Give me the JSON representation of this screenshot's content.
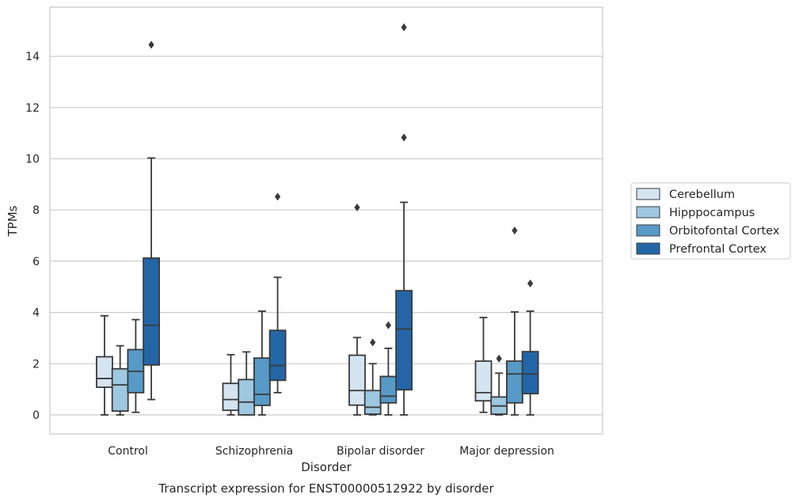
{
  "chart_data": {
    "type": "box",
    "title": "",
    "caption": "Transcript expression for ENST00000512922 by disorder",
    "xlabel": "Disorder",
    "ylabel": "TPMs",
    "ylim": [
      -0.75,
      15.85
    ],
    "yticks": [
      0,
      2,
      4,
      6,
      8,
      10,
      12,
      14
    ],
    "grid": true,
    "legend_position": "right",
    "categories": [
      "Control",
      "Schizophrenia",
      "Bipolar disorder",
      "Major depression"
    ],
    "series": [
      {
        "name": "Cerebellum",
        "color": "#d5e4f1",
        "boxes": [
          {
            "whislo": 0.0,
            "q1": 1.08,
            "med": 1.42,
            "q3": 2.27,
            "whishi": 3.87,
            "fliers": []
          },
          {
            "whislo": 0.0,
            "q1": 0.18,
            "med": 0.6,
            "q3": 1.23,
            "whishi": 2.35,
            "fliers": []
          },
          {
            "whislo": 0.0,
            "q1": 0.38,
            "med": 0.95,
            "q3": 2.33,
            "whishi": 3.02,
            "fliers": [
              8.1
            ]
          },
          {
            "whislo": 0.1,
            "q1": 0.55,
            "med": 0.87,
            "q3": 2.1,
            "whishi": 3.8,
            "fliers": []
          }
        ]
      },
      {
        "name": "Hipppocampus",
        "color": "#9ec8e0",
        "boxes": [
          {
            "whislo": 0.0,
            "q1": 0.15,
            "med": 1.17,
            "q3": 1.8,
            "whishi": 2.7,
            "fliers": []
          },
          {
            "whislo": 0.0,
            "q1": 0.0,
            "med": 0.5,
            "q3": 1.38,
            "whishi": 2.46,
            "fliers": []
          },
          {
            "whislo": 0.0,
            "q1": 0.03,
            "med": 0.3,
            "q3": 0.95,
            "whishi": 2.0,
            "fliers": [
              2.83
            ]
          },
          {
            "whislo": 0.0,
            "q1": 0.03,
            "med": 0.35,
            "q3": 0.7,
            "whishi": 1.63,
            "fliers": [
              2.2
            ]
          }
        ]
      },
      {
        "name": "Orbitofontal Cortex",
        "color": "#5799c7",
        "boxes": [
          {
            "whislo": 0.1,
            "q1": 0.87,
            "med": 1.7,
            "q3": 2.55,
            "whishi": 3.72,
            "fliers": []
          },
          {
            "whislo": 0.0,
            "q1": 0.37,
            "med": 0.8,
            "q3": 2.22,
            "whishi": 4.05,
            "fliers": []
          },
          {
            "whislo": 0.0,
            "q1": 0.47,
            "med": 0.73,
            "q3": 1.5,
            "whishi": 2.6,
            "fliers": [
              3.5
            ]
          },
          {
            "whislo": 0.0,
            "q1": 0.47,
            "med": 1.6,
            "q3": 2.1,
            "whishi": 4.02,
            "fliers": [
              7.2
            ]
          }
        ]
      },
      {
        "name": "Prefrontal Cortex",
        "color": "#2366a8",
        "boxes": [
          {
            "whislo": 0.6,
            "q1": 1.95,
            "med": 3.5,
            "q3": 6.12,
            "whishi": 10.03,
            "fliers": [
              14.45
            ]
          },
          {
            "whislo": 0.87,
            "q1": 1.35,
            "med": 1.93,
            "q3": 3.3,
            "whishi": 5.37,
            "fliers": [
              8.52
            ]
          },
          {
            "whislo": 0.0,
            "q1": 0.98,
            "med": 3.35,
            "q3": 4.85,
            "whishi": 8.3,
            "fliers": [
              10.83,
              15.13
            ]
          },
          {
            "whislo": 0.0,
            "q1": 0.83,
            "med": 1.6,
            "q3": 2.47,
            "whishi": 4.05,
            "fliers": [
              5.13
            ]
          }
        ]
      }
    ]
  },
  "colors": {
    "grid": "#cccccc",
    "frame": "#cccccc",
    "line": "#3a3a3a",
    "legend_border": "#cccccc"
  }
}
